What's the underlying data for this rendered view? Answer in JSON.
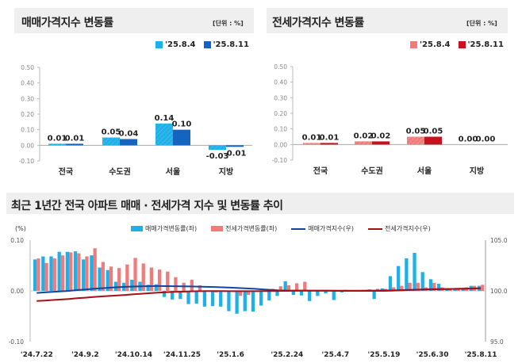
{
  "chart_data": [
    {
      "type": "bar",
      "title": "매매가격지수 변동률",
      "unit": "[단위 : %]",
      "categories": [
        "전국",
        "수도권",
        "서울",
        "지방"
      ],
      "series": [
        {
          "name": "'25.8.4",
          "values": [
            0.01,
            0.05,
            0.14,
            -0.03
          ],
          "color": "#1fb0e8"
        },
        {
          "name": "'25.8.11",
          "values": [
            0.01,
            0.04,
            0.1,
            -0.01
          ],
          "color": "#1565c0"
        }
      ],
      "data_labels": [
        [
          "0.01",
          "0.05",
          "0.14",
          "-0.03"
        ],
        [
          "0.01",
          "0.04",
          "0.10",
          "-0.01"
        ]
      ],
      "ylim": [
        -0.1,
        0.5
      ],
      "yticks": [
        "0.50",
        "0.40",
        "0.30",
        "0.20",
        "0.10",
        "0.00",
        "-0.10"
      ],
      "legend": "top-right"
    },
    {
      "type": "bar",
      "title": "전세가격지수 변동률",
      "unit": "[단위 : %]",
      "categories": [
        "전국",
        "수도권",
        "서울",
        "지방"
      ],
      "series": [
        {
          "name": "'25.8.4",
          "values": [
            0.01,
            0.02,
            0.05,
            0.0
          ],
          "color": "#f07b7b"
        },
        {
          "name": "'25.8.11",
          "values": [
            0.01,
            0.02,
            0.05,
            0.0
          ],
          "color": "#c8101e"
        }
      ],
      "data_labels": [
        [
          "0.01",
          "0.02",
          "0.05",
          "0.00"
        ],
        [
          "0.01",
          "0.02",
          "0.05",
          "0.00"
        ]
      ],
      "ylim": [
        -0.1,
        0.5
      ],
      "yticks": [
        "0.50",
        "0.40",
        "0.30",
        "0.20",
        "0.10",
        "0.00",
        "-0.10"
      ],
      "legend": "top-right"
    },
    {
      "type": "bar+line",
      "title": "최근 1년간 전국 아파트 매매 · 전세가격 지수 및 변동률 추이",
      "ylabel_left": "(%)",
      "ylim_left": [
        -0.1,
        0.1
      ],
      "yticks_left": [
        "0.10",
        "0.00",
        "-0.10"
      ],
      "ylim_right": [
        95.0,
        105.0
      ],
      "yticks_right": [
        "105.0",
        "100.0",
        "95.0"
      ],
      "xtick_labels": [
        "'24.7.22",
        "'24.9.2",
        "'24.10.14",
        "'24.11.25",
        "'25.1.6",
        "'25.2.24",
        "'25.4.7",
        "'25.5.19",
        "'25.6.30",
        "'25.8.11"
      ],
      "legend": "top",
      "series": [
        {
          "name": "매매가격변동률(좌)",
          "kind": "bar",
          "color": "#1fb0e8",
          "values": [
            0.062,
            0.068,
            0.068,
            0.077,
            0.077,
            0.078,
            0.062,
            0.07,
            0.046,
            0.041,
            0.018,
            0.016,
            0.022,
            0.018,
            0.012,
            0.013,
            -0.012,
            -0.017,
            -0.016,
            -0.026,
            -0.025,
            -0.031,
            -0.03,
            -0.031,
            -0.04,
            -0.045,
            -0.04,
            -0.041,
            -0.029,
            -0.019,
            -0.01,
            0.019,
            -0.008,
            -0.009,
            -0.02,
            -0.01,
            -0.005,
            -0.018,
            -0.003,
            0.0,
            0.0,
            0.0,
            -0.016,
            0.005,
            0.029,
            0.049,
            0.064,
            0.075,
            0.037,
            0.023,
            0.014,
            0.005,
            0.004,
            0.004,
            0.01,
            0.01
          ]
        },
        {
          "name": "전세가격변동률(좌)",
          "kind": "bar",
          "color": "#f07b7b",
          "values": [
            0.064,
            0.055,
            0.064,
            0.07,
            0.076,
            0.074,
            0.068,
            0.084,
            0.057,
            0.048,
            0.045,
            0.052,
            0.065,
            0.054,
            0.046,
            0.042,
            0.038,
            0.027,
            0.016,
            0.022,
            0.011,
            0.0,
            -0.003,
            -0.002,
            -0.002,
            -0.01,
            -0.008,
            -0.002,
            0.0,
            0.004,
            0.009,
            0.011,
            0.015,
            0.018,
            0.0,
            0.0,
            0.0,
            0.001,
            0.002,
            0.001,
            0.0,
            0.003,
            0.004,
            0.004,
            0.007,
            0.01,
            0.016,
            0.016,
            0.007,
            0.016,
            0.007,
            0.004,
            0.005,
            0.007,
            0.01,
            0.012
          ]
        },
        {
          "name": "매매가격지수(우)",
          "kind": "line",
          "color": "#0d47a1",
          "values": [
            99.8,
            99.85,
            99.9,
            99.95,
            100.0,
            100.08,
            100.14,
            100.2,
            100.26,
            100.31,
            100.36,
            100.4,
            100.43,
            100.45,
            100.47,
            100.48,
            100.47,
            100.46,
            100.45,
            100.44,
            100.42,
            100.4,
            100.38,
            100.35,
            100.32,
            100.28,
            100.24,
            100.2,
            100.15,
            100.1,
            100.05,
            100.03,
            100.03,
            100.03,
            100.02,
            100.02,
            100.02,
            100.0,
            100.0,
            100.0,
            100.0,
            100.0,
            100.0,
            100.0,
            100.02,
            100.05,
            100.08,
            100.12,
            100.15,
            100.17,
            100.18,
            100.19,
            100.2,
            100.21,
            100.23,
            100.25
          ]
        },
        {
          "name": "전세가격지수(우)",
          "kind": "line",
          "color": "#a50f15",
          "values": [
            99.0,
            99.05,
            99.1,
            99.15,
            99.2,
            99.27,
            99.33,
            99.4,
            99.45,
            99.5,
            99.55,
            99.6,
            99.67,
            99.72,
            99.77,
            99.82,
            99.86,
            99.9,
            99.92,
            99.95,
            99.97,
            99.98,
            99.98,
            99.98,
            99.97,
            99.97,
            99.97,
            99.97,
            99.98,
            99.98,
            99.99,
            100.0,
            100.01,
            100.02,
            100.02,
            100.02,
            100.02,
            100.02,
            100.02,
            100.02,
            100.02,
            100.03,
            100.03,
            100.04,
            100.05,
            100.07,
            100.09,
            100.11,
            100.13,
            100.15,
            100.17,
            100.18,
            100.2,
            100.22,
            100.24,
            100.26
          ]
        }
      ]
    }
  ]
}
